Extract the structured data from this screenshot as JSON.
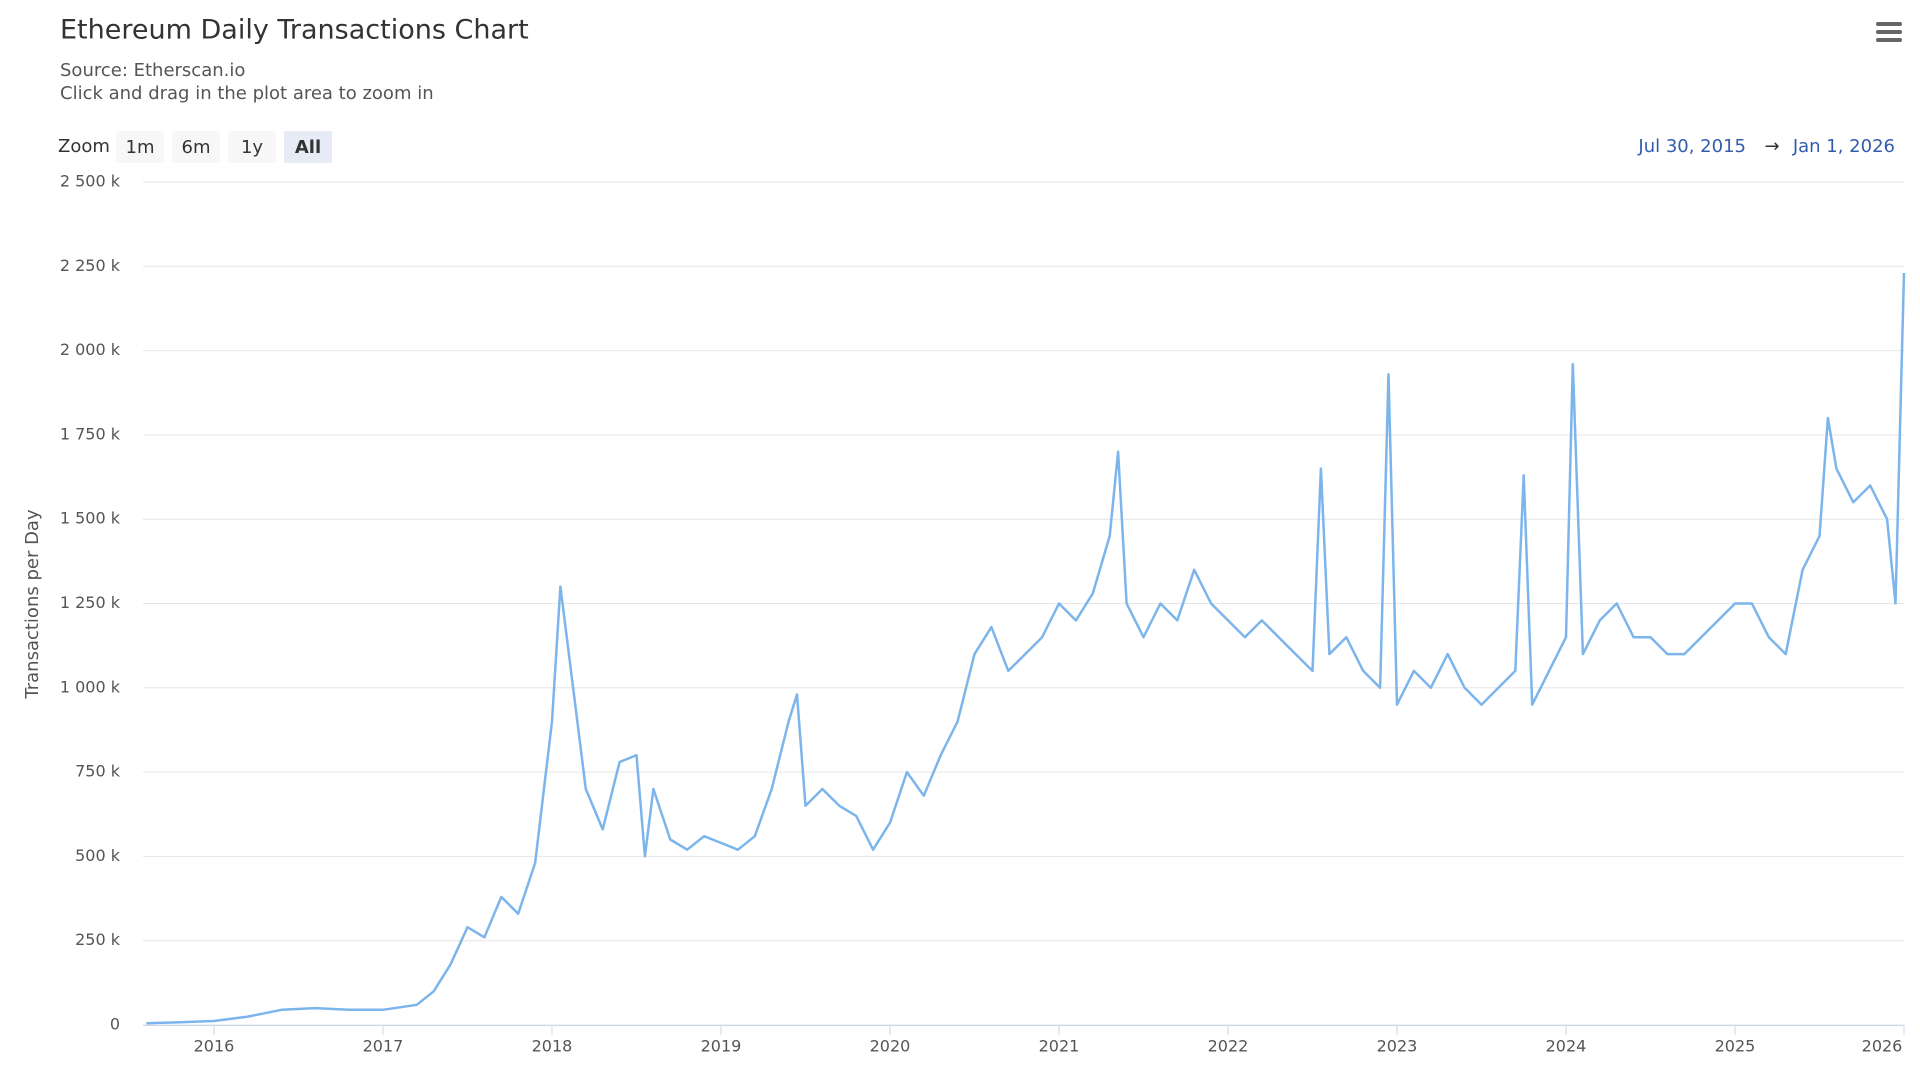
{
  "chart_data": {
    "type": "line",
    "title": "Ethereum Daily Transactions Chart",
    "subtitle": [
      "Source: Etherscan.io",
      "Click and drag in the plot area to zoom in"
    ],
    "zoom_label": "Zoom",
    "zoom_buttons": [
      "1m",
      "6m",
      "1y",
      "All"
    ],
    "selected_zoom": "All",
    "range_from": "Jul 30, 2015",
    "range_arrow": "→",
    "range_to": "Jan 1, 2026",
    "y_axis_label": "Transactions per Day",
    "grid": true,
    "xlim": [
      2015.58,
      2026.0
    ],
    "xticks": [
      2016,
      2017,
      2018,
      2019,
      2020,
      2021,
      2022,
      2023,
      2024,
      2025,
      2026
    ],
    "ylim": [
      0,
      2500000
    ],
    "yticks": [
      0,
      {
        "value": 250000,
        "label": "250 k"
      },
      {
        "value": 500000,
        "label": "500 k"
      },
      {
        "value": 750000,
        "label": "750 k"
      },
      {
        "value": 1000000,
        "label": "1 000 k"
      },
      {
        "value": 1250000,
        "label": "1 250 k"
      },
      {
        "value": 1500000,
        "label": "1 500 k"
      },
      {
        "value": 1750000,
        "label": "1 750 k"
      },
      {
        "value": 2000000,
        "label": "2 000 k"
      },
      {
        "value": 2250000,
        "label": "2 250 k"
      },
      {
        "value": 2500000,
        "label": "2 500 k"
      }
    ],
    "x": [
      2015.6,
      2015.8,
      2016.0,
      2016.2,
      2016.4,
      2016.6,
      2016.8,
      2017.0,
      2017.2,
      2017.3,
      2017.4,
      2017.5,
      2017.6,
      2017.7,
      2017.8,
      2017.9,
      2018.0,
      2018.05,
      2018.1,
      2018.2,
      2018.3,
      2018.4,
      2018.5,
      2018.55,
      2018.6,
      2018.7,
      2018.8,
      2018.9,
      2019.0,
      2019.1,
      2019.2,
      2019.3,
      2019.4,
      2019.45,
      2019.5,
      2019.6,
      2019.7,
      2019.8,
      2019.9,
      2020.0,
      2020.1,
      2020.2,
      2020.3,
      2020.4,
      2020.5,
      2020.6,
      2020.7,
      2020.8,
      2020.9,
      2021.0,
      2021.1,
      2021.2,
      2021.3,
      2021.35,
      2021.4,
      2021.5,
      2021.6,
      2021.7,
      2021.8,
      2021.9,
      2022.0,
      2022.1,
      2022.2,
      2022.3,
      2022.4,
      2022.5,
      2022.55,
      2022.6,
      2022.7,
      2022.8,
      2022.9,
      2022.95,
      2023.0,
      2023.1,
      2023.2,
      2023.3,
      2023.4,
      2023.5,
      2023.6,
      2023.7,
      2023.75,
      2023.8,
      2023.9,
      2024.0,
      2024.04,
      2024.1,
      2024.2,
      2024.3,
      2024.4,
      2024.5,
      2024.6,
      2024.7,
      2024.8,
      2024.9,
      2025.0,
      2025.1,
      2025.2,
      2025.3,
      2025.4,
      2025.5,
      2025.55,
      2025.6,
      2025.7,
      2025.8,
      2025.9,
      2025.95,
      2026.0
    ],
    "series": [
      {
        "name": "Transactions per Day",
        "color": "#7cb5ec",
        "values": [
          5000,
          8000,
          12000,
          25000,
          45000,
          50000,
          45000,
          45000,
          60000,
          100000,
          180000,
          290000,
          260000,
          380000,
          330000,
          480000,
          900000,
          1300000,
          1100000,
          700000,
          580000,
          780000,
          800000,
          500000,
          700000,
          550000,
          520000,
          560000,
          540000,
          520000,
          560000,
          700000,
          900000,
          980000,
          650000,
          700000,
          650000,
          620000,
          520000,
          600000,
          750000,
          680000,
          800000,
          900000,
          1100000,
          1180000,
          1050000,
          1100000,
          1150000,
          1250000,
          1200000,
          1280000,
          1450000,
          1700000,
          1250000,
          1150000,
          1250000,
          1200000,
          1350000,
          1250000,
          1200000,
          1150000,
          1200000,
          1150000,
          1100000,
          1050000,
          1650000,
          1100000,
          1150000,
          1050000,
          1000000,
          1930000,
          950000,
          1050000,
          1000000,
          1100000,
          1000000,
          950000,
          1000000,
          1050000,
          1630000,
          950000,
          1050000,
          1150000,
          1960000,
          1100000,
          1200000,
          1250000,
          1150000,
          1150000,
          1100000,
          1100000,
          1150000,
          1200000,
          1250000,
          1250000,
          1150000,
          1100000,
          1350000,
          1450000,
          1800000,
          1650000,
          1550000,
          1600000,
          1500000,
          1250000,
          2230000
        ]
      }
    ]
  }
}
